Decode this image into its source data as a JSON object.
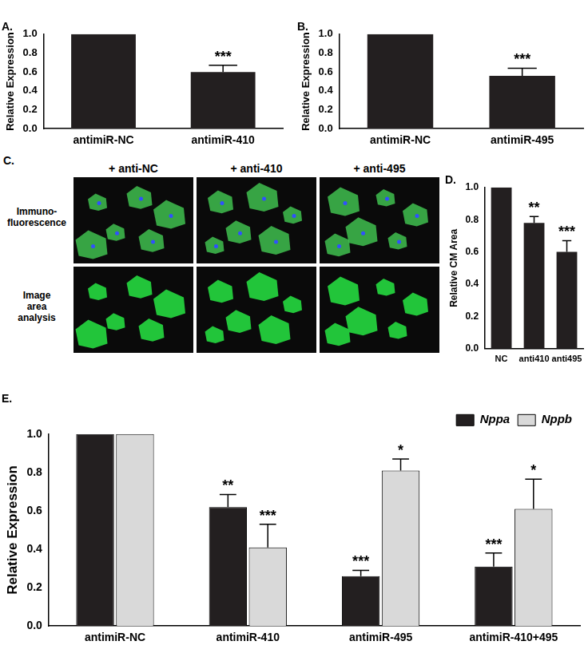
{
  "chart_data": [
    {
      "type": "bar",
      "title": "A.",
      "y_label": "Relative Expression",
      "categories": [
        "antimiR-NC",
        "antimiR-410"
      ],
      "values": [
        1.0,
        0.6
      ],
      "errors": [
        0,
        0.07
      ],
      "annotations": [
        null,
        "***"
      ],
      "color": "#231f20",
      "ylim": [
        0,
        1
      ],
      "yticks": [
        {
          "value": 0,
          "label": "0.0"
        },
        0.2,
        0.4,
        0.6,
        0.8,
        {
          "value": 1,
          "label": "1.0"
        }
      ],
      "grid": false
    },
    {
      "type": "bar",
      "title": "B.",
      "y_label": "Relative Expression",
      "categories": [
        "antimiR-NC",
        "antimiR-495"
      ],
      "values": [
        1.0,
        0.56
      ],
      "errors": [
        0,
        0.08
      ],
      "annotations": [
        null,
        "***"
      ],
      "color": "#231f20",
      "ylim": [
        0,
        1
      ],
      "yticks": [
        {
          "value": 0,
          "label": "0.0"
        },
        0.2,
        0.4,
        0.6,
        0.8,
        {
          "value": 1,
          "label": "1.0"
        }
      ],
      "grid": false
    },
    {
      "type": "bar",
      "title": "D.",
      "y_label": "Relative CM Area",
      "categories": [
        "NC",
        "anti410",
        "anti495"
      ],
      "values": [
        1.0,
        0.78,
        0.6
      ],
      "errors": [
        0,
        0.04,
        0.07
      ],
      "annotations": [
        null,
        "**",
        "***"
      ],
      "color": "#231f20",
      "ylim": [
        0,
        1
      ],
      "yticks": [
        {
          "value": 0,
          "label": "0.0"
        },
        0.2,
        0.4,
        0.6,
        0.8,
        {
          "value": 1,
          "label": "1.0"
        }
      ],
      "grid": false
    },
    {
      "type": "bar",
      "title": "E.",
      "y_label": "Relative Expression",
      "categories": [
        "antimiR-NC",
        "antimiR-410",
        "antimiR-495",
        "antimiR-410+495"
      ],
      "series": [
        {
          "name": "Nppa",
          "color": "#231f20",
          "values": [
            1.0,
            0.62,
            0.26,
            0.31
          ],
          "errors": [
            0,
            0.065,
            0.03,
            0.07
          ],
          "annotations": [
            null,
            "**",
            "***",
            "***"
          ]
        },
        {
          "name": "Nppb",
          "color": "#d9d9d9",
          "values": [
            1.0,
            0.41,
            0.81,
            0.61
          ],
          "errors": [
            0,
            0.12,
            0.06,
            0.155
          ],
          "annotations": [
            null,
            "***",
            "*",
            "*"
          ]
        }
      ],
      "legend": "top-right",
      "ylim": [
        0,
        1
      ],
      "yticks": [
        {
          "value": 0,
          "label": "0.0"
        },
        0.2,
        0.4,
        0.6,
        0.8,
        {
          "value": 1,
          "label": "1.0"
        }
      ],
      "grid": false
    }
  ],
  "images": {
    "title": "C.",
    "columns": [
      "+ anti-NC",
      "+ anti-410",
      "+ anti-495"
    ],
    "rows": [
      "Immuno-fluorescence",
      "Image area analysis"
    ]
  }
}
